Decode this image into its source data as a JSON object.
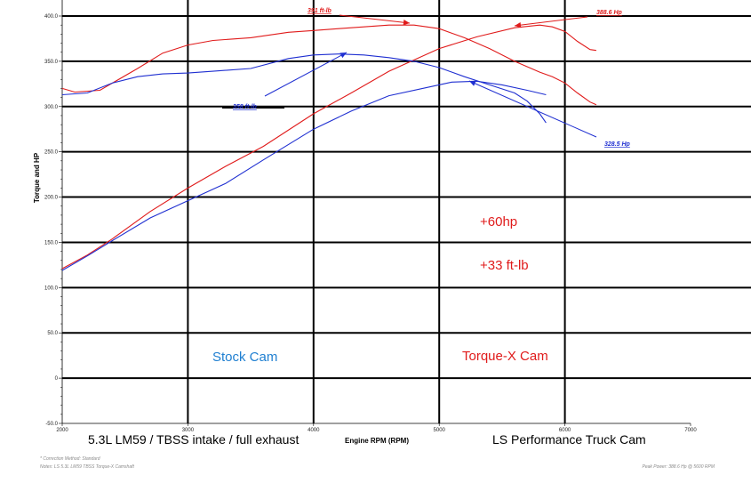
{
  "chart_data": {
    "type": "line",
    "title": "",
    "xlabel": "Engine RPM (RPM)",
    "ylabel": "Torque and HP",
    "xlim": [
      2000,
      7000
    ],
    "ylim": [
      -50,
      400
    ],
    "x_ticks": [
      "2000",
      "3000",
      "4000",
      "5000",
      "6000",
      "7000"
    ],
    "y_ticks": [
      "-50.0",
      "0",
      "50.0",
      "100.0",
      "150.0",
      "200.0",
      "250.0",
      "300.0",
      "350.0",
      "400.0"
    ],
    "grid": true,
    "colors": {
      "torque_x": "#e01b1b",
      "stock": "#1f2fd1",
      "stock_note": "#1f7fd1"
    },
    "series": [
      {
        "name": "",
        "color": "#e01b1b",
        "x": [
          2000,
          2100,
          2300,
          2600,
          2800,
          3000,
          3200,
          3500,
          3800,
          4000,
          4200,
          4400,
          4600,
          4800,
          5000,
          5200,
          5400,
          5600,
          5800,
          5900,
          6000,
          6100,
          6200,
          6250
        ],
        "y": [
          320,
          316,
          318,
          342,
          359,
          368,
          373,
          376,
          382,
          384,
          386,
          388,
          390,
          390,
          386,
          376,
          364,
          350,
          338,
          333,
          326,
          315,
          305,
          302
        ]
      },
      {
        "name": "",
        "color": "#e01b1b",
        "x": [
          2000,
          2200,
          2400,
          2700,
          3000,
          3300,
          3600,
          4000,
          4300,
          4600,
          5000,
          5300,
          5600,
          5800,
          5900,
          6000,
          6100,
          6200,
          6250
        ],
        "y": [
          121,
          136,
          154,
          184,
          210,
          234,
          256,
          292,
          315,
          339,
          364,
          377,
          387,
          390,
          388,
          383,
          372,
          363,
          362
        ]
      },
      {
        "name": "",
        "color": "#1f2fd1",
        "x": [
          2000,
          2200,
          2400,
          2600,
          2800,
          3000,
          3200,
          3500,
          3800,
          4000,
          4200,
          4400,
          4600,
          4800,
          5000,
          5200,
          5400,
          5600,
          5700,
          5800,
          5850
        ],
        "y": [
          313,
          315,
          326,
          333,
          336,
          337,
          339,
          342,
          353,
          357,
          358,
          357,
          354,
          350,
          343,
          333,
          324,
          315,
          306,
          292,
          282
        ]
      },
      {
        "name": "",
        "color": "#1f2fd1",
        "x": [
          2000,
          2200,
          2400,
          2700,
          3000,
          3300,
          3600,
          4000,
          4300,
          4600,
          4900,
          5100,
          5300,
          5500,
          5700,
          5850
        ],
        "y": [
          119,
          135,
          152,
          177,
          196,
          215,
          241,
          275,
          295,
          312,
          321,
          327,
          328,
          324,
          318,
          313
        ]
      }
    ],
    "annotations": {
      "torque_x_peak_torque": "391 ft-lb",
      "torque_x_peak_hp": "388.6 Hp",
      "stock_peak_torque": "358 ft-lb",
      "stock_peak_hp": "328.5 Hp",
      "hp_gain": "+60hp",
      "torque_gain": "+33 ft-lb",
      "stock_label": "Stock Cam",
      "torque_x_label": "Torque-X Cam",
      "left_caption": "5.3L LM59 / TBSS intake / full exhaust",
      "right_caption": "LS Performance Truck Cam"
    },
    "footnotes": {
      "correction": "* Correction Method: Standard",
      "notes": "Notes: LS 5.3L LM59 TBSS Torque-X Camshaft",
      "peak_power": "Peak Power: 388.6 Hp @ 5600 RPM"
    }
  }
}
